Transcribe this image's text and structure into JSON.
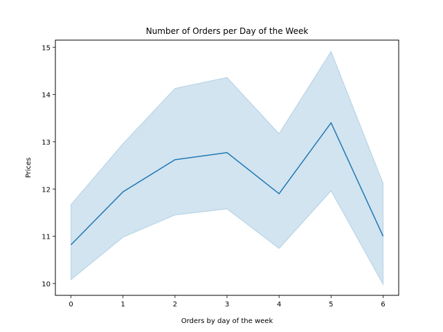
{
  "chart_data": {
    "type": "line",
    "title": "Number of Orders per Day of the Week",
    "xlabel": "Orders by day of the week",
    "ylabel": "Prices",
    "x": [
      0,
      1,
      2,
      3,
      4,
      5,
      6
    ],
    "x_ticks": [
      "0",
      "1",
      "2",
      "3",
      "4",
      "5",
      "6"
    ],
    "y_ticks": [
      "10",
      "11",
      "12",
      "13",
      "14",
      "15"
    ],
    "xlim": [
      -0.3,
      6.3
    ],
    "ylim": [
      9.75,
      15.15
    ],
    "grid": false,
    "series": [
      {
        "values": [
          10.82,
          11.94,
          12.62,
          12.77,
          11.9,
          13.4,
          11.0
        ],
        "lower": [
          10.08,
          10.98,
          11.45,
          11.58,
          10.74,
          11.96,
          9.98
        ],
        "upper": [
          11.67,
          12.96,
          14.13,
          14.36,
          13.17,
          14.91,
          12.12
        ],
        "color": "#1f77b4",
        "band_color": "#1f77b4"
      }
    ]
  }
}
